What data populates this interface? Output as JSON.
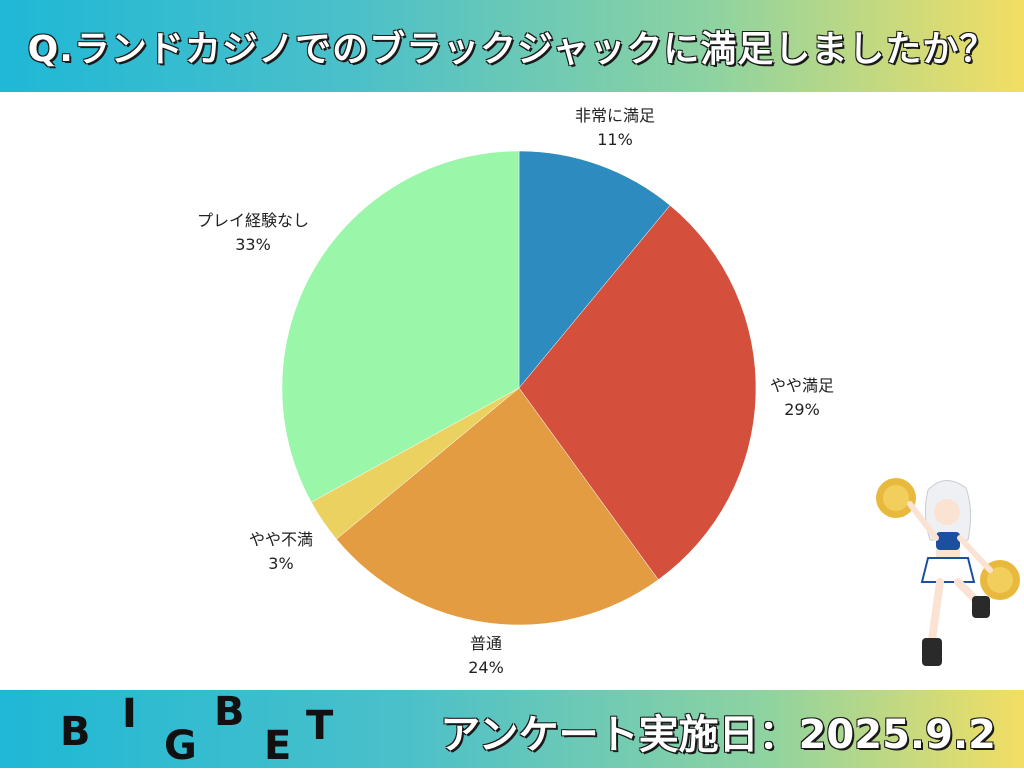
{
  "header": {
    "title": "Q.ランドカジノでのブラックジャックに満足しましたか？"
  },
  "chart_data": {
    "type": "pie",
    "title": "Q.ランドカジノでのブラックジャックに満足しましたか？",
    "start": "12 o'clock, clockwise",
    "slices": [
      {
        "label": "非常に満足",
        "value": 11,
        "display": "11%",
        "color": "#2e8bc0"
      },
      {
        "label": "やや満足",
        "value": 29,
        "display": "29%",
        "color": "#d4503c"
      },
      {
        "label": "普通",
        "value": 24,
        "display": "24%",
        "color": "#e49c42"
      },
      {
        "label": "やや不満",
        "value": 3,
        "display": "3%",
        "color": "#ebd160"
      },
      {
        "label": "プレイ経験なし",
        "value": 33,
        "display": "33%",
        "color": "#9af6a8"
      }
    ]
  },
  "footer": {
    "logo_letters": [
      "B",
      "I",
      "G",
      "B",
      "E",
      "T"
    ],
    "survey_date": "アンケート実施日：2025.9.2"
  }
}
